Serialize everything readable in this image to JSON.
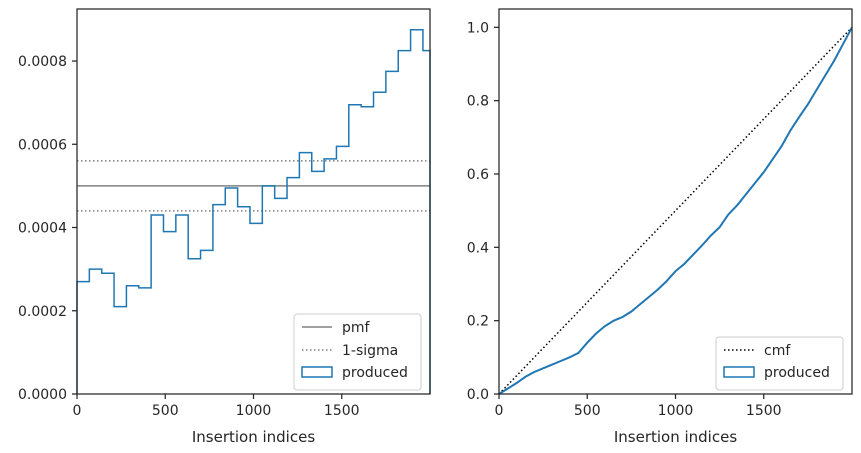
{
  "chart_data": [
    {
      "type": "line",
      "title": "",
      "xlabel": "Insertion indices",
      "ylabel": "",
      "xlim": [
        0,
        2000
      ],
      "ylim": [
        0,
        0.000925
      ],
      "xticks": [
        0,
        500,
        1000,
        1500
      ],
      "xtick_labels": [
        "0",
        "500",
        "1000",
        "1500"
      ],
      "yticks": [
        0,
        0.0002,
        0.0004,
        0.0006,
        0.0008
      ],
      "ytick_labels": [
        "0.0000",
        "0.0002",
        "0.0004",
        "0.0006",
        "0.0008"
      ],
      "grid": false,
      "legend_position": "lower-right",
      "series": [
        {
          "name": "pmf",
          "kind": "hline",
          "style": "solid",
          "color": "#808080",
          "y": 0.0005
        },
        {
          "name": "1-sigma",
          "kind": "hlines",
          "style": "dotted",
          "color": "#808080",
          "y": [
            0.00044,
            0.00056
          ]
        },
        {
          "name": "produced",
          "kind": "step-hist",
          "color": "#1f77b4",
          "bin_edges": [
            0,
            70,
            140,
            210,
            280,
            350,
            420,
            490,
            560,
            630,
            700,
            770,
            840,
            910,
            980,
            1050,
            1120,
            1190,
            1260,
            1330,
            1400,
            1470,
            1540,
            1610,
            1680,
            1750,
            1820,
            1890,
            1960,
            2000
          ],
          "values": [
            0.00027,
            0.0003,
            0.00029,
            0.00021,
            0.00026,
            0.000255,
            0.00043,
            0.00039,
            0.00043,
            0.000325,
            0.000345,
            0.000455,
            0.000495,
            0.00045,
            0.00041,
            0.0005,
            0.00047,
            0.00052,
            0.00058,
            0.000535,
            0.000565,
            0.000595,
            0.000695,
            0.00069,
            0.000725,
            0.000775,
            0.000825,
            0.000875,
            0.000825
          ]
        }
      ]
    },
    {
      "type": "line",
      "title": "",
      "xlabel": "Insertion indices",
      "ylabel": "",
      "xlim": [
        0,
        2000
      ],
      "ylim": [
        0,
        1.05
      ],
      "xticks": [
        0,
        500,
        1000,
        1500
      ],
      "xtick_labels": [
        "0",
        "500",
        "1000",
        "1500"
      ],
      "yticks": [
        0,
        0.2,
        0.4,
        0.6,
        0.8,
        1.0
      ],
      "ytick_labels": [
        "0.0",
        "0.2",
        "0.4",
        "0.6",
        "0.8",
        "1.0"
      ],
      "grid": false,
      "legend_position": "lower-right",
      "series": [
        {
          "name": "cmf",
          "kind": "line",
          "style": "dotted",
          "color": "#000000",
          "x": [
            0,
            2000
          ],
          "y": [
            0,
            1.0
          ]
        },
        {
          "name": "produced",
          "kind": "step",
          "color": "#1f77b4",
          "x": [
            0,
            50,
            100,
            150,
            200,
            250,
            300,
            350,
            400,
            450,
            500,
            550,
            600,
            650,
            700,
            750,
            800,
            850,
            900,
            950,
            1000,
            1050,
            1100,
            1150,
            1200,
            1250,
            1300,
            1350,
            1400,
            1450,
            1500,
            1550,
            1600,
            1650,
            1700,
            1750,
            1800,
            1850,
            1900,
            1950,
            2000
          ],
          "y": [
            0,
            0.015,
            0.03,
            0.047,
            0.06,
            0.07,
            0.08,
            0.09,
            0.1,
            0.112,
            0.14,
            0.165,
            0.185,
            0.2,
            0.21,
            0.225,
            0.245,
            0.265,
            0.285,
            0.308,
            0.335,
            0.355,
            0.38,
            0.405,
            0.432,
            0.455,
            0.49,
            0.515,
            0.545,
            0.575,
            0.605,
            0.64,
            0.675,
            0.718,
            0.755,
            0.79,
            0.83,
            0.87,
            0.91,
            0.955,
            1.0
          ]
        }
      ]
    }
  ]
}
